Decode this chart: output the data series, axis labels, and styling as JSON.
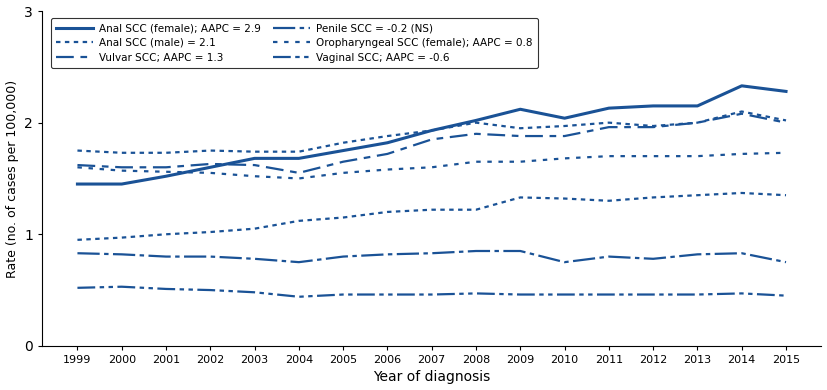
{
  "years": [
    1999,
    2000,
    2001,
    2002,
    2003,
    2004,
    2005,
    2006,
    2007,
    2008,
    2009,
    2010,
    2011,
    2012,
    2013,
    2014,
    2015
  ],
  "anal_scc_female": [
    1.45,
    1.45,
    1.52,
    1.6,
    1.68,
    1.68,
    1.75,
    1.82,
    1.93,
    2.02,
    2.12,
    2.04,
    2.13,
    2.15,
    2.15,
    2.33,
    2.28
  ],
  "anal_scc_male_top": [
    1.75,
    1.73,
    1.73,
    1.75,
    1.74,
    1.74,
    1.82,
    1.88,
    1.93,
    2.0,
    1.95,
    1.97,
    2.0,
    1.97,
    2.0,
    2.1,
    2.02
  ],
  "vulvar_scc": [
    1.62,
    1.6,
    1.6,
    1.63,
    1.62,
    1.55,
    1.65,
    1.72,
    1.85,
    1.9,
    1.88,
    1.88,
    1.96,
    1.96,
    2.0,
    2.08,
    2.0
  ],
  "penile_scc": [
    0.83,
    0.82,
    0.8,
    0.8,
    0.78,
    0.75,
    0.8,
    0.82,
    0.83,
    0.85,
    0.85,
    0.75,
    0.8,
    0.78,
    0.82,
    0.83,
    0.75
  ],
  "oropharyngeal_scc_female": [
    1.6,
    1.57,
    1.56,
    1.55,
    1.52,
    1.5,
    1.55,
    1.58,
    1.6,
    1.65,
    1.65,
    1.68,
    1.7,
    1.7,
    1.7,
    1.72,
    1.73
  ],
  "anal_scc_male_mid": [
    0.95,
    0.97,
    1.0,
    1.02,
    1.05,
    1.12,
    1.15,
    1.2,
    1.22,
    1.22,
    1.33,
    1.32,
    1.3,
    1.33,
    1.35,
    1.37,
    1.35
  ],
  "vaginal_scc": [
    0.52,
    0.53,
    0.51,
    0.5,
    0.48,
    0.44,
    0.46,
    0.46,
    0.46,
    0.47,
    0.46,
    0.46,
    0.46,
    0.46,
    0.46,
    0.47,
    0.45
  ],
  "color": "#1a5296",
  "ylabel": "Rate (no. of cases per 100,000)",
  "xlabel": "Year of diagnosis",
  "ylim": [
    0,
    3
  ],
  "yticks": [
    0,
    1,
    2,
    3
  ],
  "legend_labels_left": [
    "Anal SCC (female); AAPC = 2.9",
    "Vulvar SCC; AAPC = 1.3",
    "Oropharyngeal SCC (female); AAPC = 0.8"
  ],
  "legend_labels_right": [
    "Anal SCC (male) = 2.1",
    "Penile SCC = -0.2 (NS)",
    "Vaginal SCC; AAPC = -0.6"
  ]
}
